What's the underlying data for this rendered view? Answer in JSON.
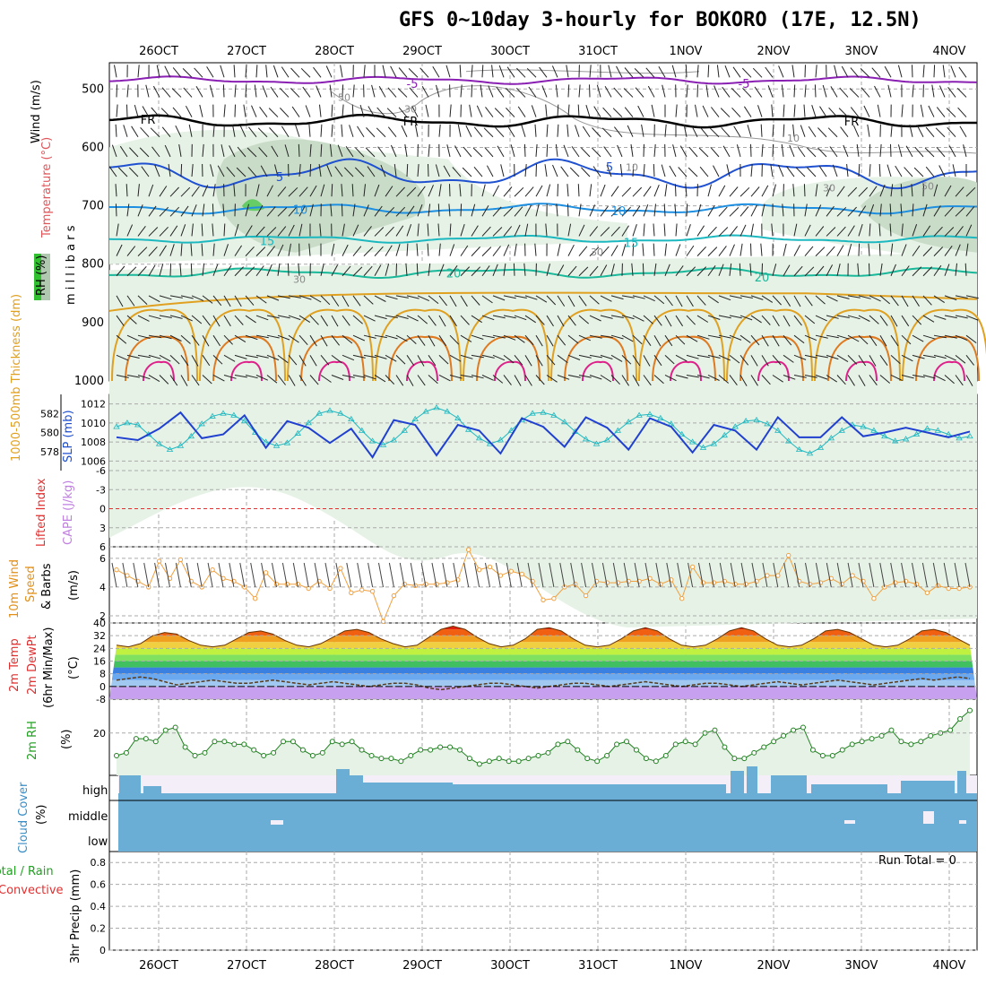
{
  "title": "GFS 0~10day 3-hourly for BOKORO (17E, 12.5N)",
  "dates": [
    "26OCT",
    "27OCT",
    "28OCT",
    "29OCT",
    "30OCT",
    "31OCT",
    "1NOV",
    "2NOV",
    "3NOV",
    "4NOV"
  ],
  "run_total": "Run Total = 0",
  "colors": {
    "grid": "#aaaaaa",
    "purple": "#8a1fb3",
    "black": "#000000",
    "blue": "#1f50d0",
    "lightblue": "#1e8fe0",
    "cyan": "#1cb8c0",
    "teal": "#19b89a",
    "gold": "#e0a020",
    "orange": "#e07a20",
    "magenta": "#e0208a",
    "rh_light": "#e6f2e6",
    "rh_mid": "#c8dcc8",
    "rh_dark": "#a8bca8",
    "cloud": "#6aaed6",
    "orangeline": "#f0a040",
    "slp": "#2040d0",
    "thick": "#20b8c0"
  },
  "panels": {
    "upper": {
      "ylabel_main": "Wind (m/s)",
      "ylabel_temp": "Temperature (°C)",
      "ylabel_rh": "RH (%)",
      "ylabel_mb": "m i l l i b a r s",
      "y_ticks": [
        "500",
        "600",
        "700",
        "800",
        "900",
        "1000"
      ],
      "contour_labels": [
        "-5",
        "-5",
        "FR",
        "FR",
        "FR",
        "5",
        "5",
        "10",
        "10",
        "15",
        "15",
        "20",
        "20"
      ],
      "rh_labels": [
        "50",
        "30",
        "10",
        "10",
        "30",
        "50",
        "30",
        "30"
      ]
    },
    "thick": {
      "ylabel_left": "1000-500mb\nThickness (dm)",
      "ylabel_right": "SLP (mb)",
      "left_ticks": [
        "582",
        "580",
        "578"
      ],
      "right_ticks": [
        "1012",
        "1010",
        "1008",
        "1006"
      ]
    },
    "cape": {
      "ylabel_left": "Lifted Index",
      "ylabel_right": "CAPE (J/kg)",
      "ticks": [
        "-6",
        "-3",
        "0",
        "3",
        "6"
      ]
    },
    "wind10": {
      "ylabel": "10m Wind Speed & Barbs (m/s)",
      "ylabel1": "10m Wind",
      "ylabel2": "Speed",
      "ylabel3": "& Barbs",
      "ylabel4": "(m/s)",
      "ticks": [
        "6",
        "4",
        "2"
      ]
    },
    "temp2m": {
      "ylabel1": "2m Temp",
      "ylabel2": "2m DewPt",
      "ylabel3": "(6hr Min/Max)",
      "ylabel4": "(°C)",
      "ticks": [
        "40",
        "32",
        "24",
        "16",
        "8",
        "0",
        "-8"
      ]
    },
    "rh2m": {
      "ylabel1": "2m RH",
      "ylabel2": "(%)",
      "ticks": [
        "20"
      ]
    },
    "cloud": {
      "ylabel1": "Cloud Cover",
      "ylabel2": "(%)",
      "levels": [
        "high",
        "middle",
        "low"
      ]
    },
    "precip": {
      "ylabel1": "Total / Rain",
      "ylabel2": "Convective",
      "ylabel3": "3hr Precip (mm)",
      "ticks": [
        "0.8",
        "0.6",
        "0.4",
        "0.2",
        "0"
      ]
    }
  },
  "chart_data": [
    {
      "type": "line",
      "name": "1000-500mb Thickness",
      "ylabel": "1000-500mb Thickness (dm)",
      "ylim": [
        576,
        584
      ],
      "values": [
        579.5,
        578.6,
        579.2,
        580.5,
        580.4,
        580.8,
        582.1,
        581.2,
        579.4,
        578.3,
        579.8,
        580.9,
        581.8,
        580.2,
        578.4,
        580.3,
        581.2,
        581.8,
        580.5,
        577.6,
        578.9,
        580.8,
        580.4,
        578.6,
        577.4,
        579.5,
        581.3,
        582.0,
        580.8,
        578.7,
        577.6,
        579.6,
        580.8,
        581.6,
        580.2,
        578.2,
        577.8,
        579.8,
        581.5,
        582.1,
        580.6,
        579.2,
        578.5,
        580.3,
        581.6,
        582.2,
        580.5,
        578.8,
        578.2,
        580.1,
        581.5,
        582.0,
        580.6,
        578.8,
        577.9,
        579.5,
        580.8,
        581.8,
        580.2,
        578.9,
        578.2,
        580.3,
        581.6,
        580.9,
        579.5,
        579.0,
        579.5,
        580.6,
        581.6,
        580.4,
        579.6,
        579.3,
        580.0,
        581.2,
        580.5,
        579.2,
        580.0,
        580.7,
        579.5,
        579.2,
        580.1
      ]
    },
    {
      "type": "line",
      "name": "SLP",
      "ylabel": "SLP (mb)",
      "ylim": [
        1005,
        1013
      ],
      "values": [
        1009.6,
        1010.0,
        1009.8,
        1008.8,
        1007.8,
        1007.2,
        1007.6,
        1008.6,
        1009.9,
        1010.7,
        1011.0,
        1010.8,
        1010.2,
        1009.0,
        1008.0,
        1007.6,
        1007.9,
        1008.9,
        1010.0,
        1011.0,
        1011.3,
        1011.0,
        1010.4,
        1009.2,
        1008.1,
        1007.7,
        1008.2,
        1009.2,
        1010.4,
        1011.2,
        1011.6,
        1011.2,
        1010.5,
        1009.3,
        1008.4,
        1007.8,
        1008.2,
        1009.2,
        1010.3,
        1011.0,
        1011.1,
        1010.8,
        1010.1,
        1009.1,
        1008.3,
        1007.8,
        1008.2,
        1009.2,
        1010.1,
        1010.8,
        1010.9,
        1010.5,
        1009.9,
        1008.8,
        1008.0,
        1007.4,
        1007.8,
        1008.7,
        1009.6,
        1010.2,
        1010.3,
        1009.9,
        1009.2,
        1008.1,
        1007.2,
        1006.8,
        1007.4,
        1008.4,
        1009.2,
        1009.8,
        1009.6,
        1009.2,
        1008.6,
        1008.1,
        1008.3,
        1008.8,
        1009.4,
        1009.2,
        1008.8,
        1008.4,
        1008.6
      ]
    },
    {
      "type": "line",
      "name": "10m Wind Speed",
      "ylabel": "(m/s)",
      "ylim": [
        1.5,
        6.8
      ],
      "values": [
        5.2,
        4.8,
        4.4,
        4.0,
        5.8,
        4.6,
        5.9,
        4.4,
        4.0,
        5.2,
        4.6,
        4.4,
        4.0,
        3.2,
        5.0,
        4.2,
        4.2,
        4.2,
        3.9,
        4.4,
        3.9,
        5.3,
        3.6,
        3.8,
        3.7,
        1.6,
        3.4,
        4.2,
        4.1,
        4.2,
        4.2,
        4.3,
        4.5,
        6.6,
        5.2,
        5.4,
        4.8,
        5.1,
        4.9,
        4.4,
        3.1,
        3.2,
        4.0,
        4.2,
        3.4,
        4.4,
        4.3,
        4.3,
        4.4,
        4.4,
        4.6,
        4.2,
        4.5,
        3.2,
        5.4,
        4.3,
        4.3,
        4.4,
        4.2,
        4.2,
        4.4,
        4.8,
        4.8,
        6.2,
        4.4,
        4.2,
        4.3,
        4.6,
        4.2,
        4.8,
        4.4,
        3.2,
        4.0,
        4.3,
        4.4,
        4.2,
        3.6,
        4.1,
        3.9,
        3.9,
        4.0
      ]
    },
    {
      "type": "area",
      "name": "2m Temp",
      "ylabel": "(°C)",
      "ylim": [
        -8,
        40
      ],
      "values": [
        26,
        25,
        27,
        32,
        34,
        33,
        29,
        26,
        25,
        26,
        30,
        34,
        35,
        33,
        29,
        26,
        25,
        27,
        31,
        35,
        36,
        34,
        30,
        27,
        25,
        26,
        31,
        36,
        38,
        36,
        31,
        27,
        25,
        26,
        30,
        36,
        37,
        35,
        30,
        26,
        25,
        26,
        30,
        35,
        37,
        35,
        30,
        26,
        25,
        26,
        30,
        35,
        37,
        35,
        30,
        26,
        25,
        26,
        30,
        35,
        36,
        34,
        30,
        26,
        25,
        26,
        30,
        35,
        36,
        34,
        30,
        26
      ]
    },
    {
      "type": "line",
      "name": "2m DewPt",
      "ylabel": "(°C)",
      "ylim": [
        -8,
        40
      ],
      "values": [
        4,
        5,
        6,
        5,
        3,
        1,
        2,
        3,
        4,
        3,
        2,
        2,
        3,
        4,
        3,
        2,
        1,
        2,
        3,
        2,
        1,
        0,
        1,
        2,
        2,
        1,
        -1,
        -2,
        -1,
        0,
        1,
        2,
        2,
        1,
        0,
        -1,
        0,
        1,
        2,
        2,
        1,
        0,
        1,
        2,
        3,
        2,
        1,
        0,
        1,
        2,
        2,
        1,
        0,
        1,
        2,
        3,
        2,
        1,
        2,
        3,
        4,
        3,
        2,
        1,
        2,
        3,
        4,
        5,
        4,
        5,
        6,
        5
      ]
    },
    {
      "type": "area",
      "name": "2m RH",
      "ylabel": "(%)",
      "ylim": [
        5,
        32
      ],
      "values": [
        12,
        13,
        18,
        18,
        17,
        21,
        22,
        15,
        12,
        13,
        17,
        17,
        16,
        16,
        14,
        12,
        13,
        17,
        17,
        14,
        12,
        13,
        17,
        16,
        17,
        14,
        12,
        11,
        11,
        10,
        12,
        14,
        14,
        15,
        15,
        14,
        11,
        9,
        10,
        11,
        10,
        10,
        11,
        12,
        13,
        16,
        17,
        14,
        11,
        10,
        12,
        16,
        17,
        14,
        11,
        10,
        12,
        16,
        17,
        16,
        20,
        21,
        15,
        11,
        11,
        13,
        15,
        17,
        19,
        21,
        22,
        14,
        12,
        12,
        14,
        16,
        17,
        18,
        19,
        21,
        17,
        16,
        17,
        19,
        20,
        21,
        25,
        28
      ]
    },
    {
      "type": "bar",
      "name": "3hr Precip",
      "ylabel": "3hr Precip (mm)",
      "ylim": [
        0,
        0.9
      ],
      "values": [
        0
      ]
    }
  ]
}
